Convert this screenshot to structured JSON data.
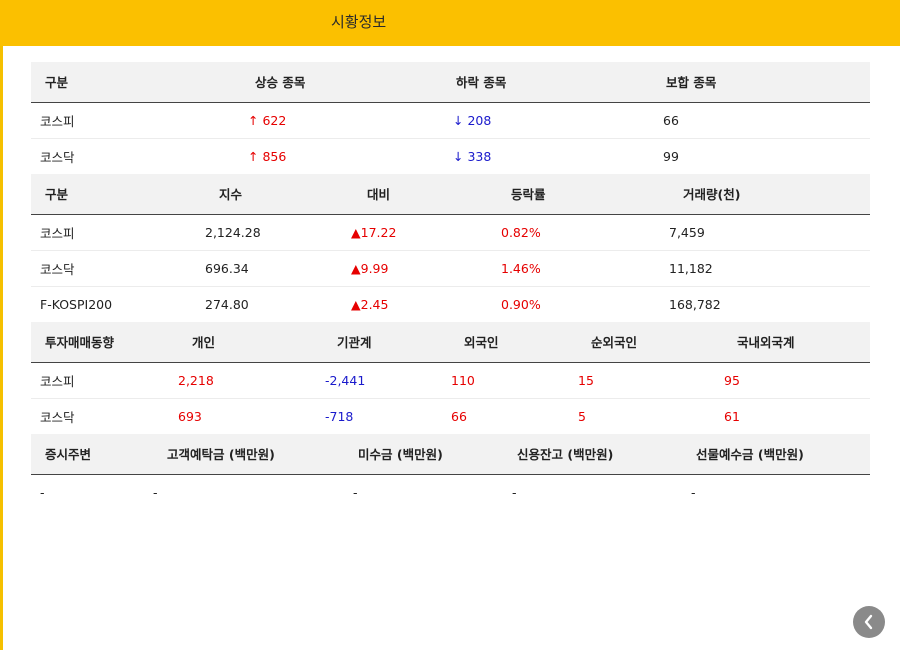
{
  "header": {
    "title": "시황정보"
  },
  "table1": {
    "headers": [
      "구분",
      "상승 종목",
      "하락 종목",
      "보합 종목"
    ],
    "rows": [
      {
        "name": "코스피",
        "rise": "↑ 622",
        "fall": "↓ 208",
        "flat": "66"
      },
      {
        "name": "코스닥",
        "rise": "↑ 856",
        "fall": "↓ 338",
        "flat": "99"
      }
    ]
  },
  "table2": {
    "headers": [
      "구분",
      "지수",
      "대비",
      "등락률",
      "거래량(천)"
    ],
    "rows": [
      {
        "name": "코스피",
        "index": "2,124.28",
        "change": "▲17.22",
        "rate": "0.82%",
        "volume": "7,459"
      },
      {
        "name": "코스닥",
        "index": "696.34",
        "change": "▲9.99",
        "rate": "1.46%",
        "volume": "11,182"
      },
      {
        "name": "F-KOSPI200",
        "index": "274.80",
        "change": "▲2.45",
        "rate": "0.90%",
        "volume": "168,782"
      }
    ]
  },
  "table3": {
    "headers": [
      "투자매매동향",
      "개인",
      "기관계",
      "외국인",
      "순외국인",
      "국내외국계"
    ],
    "rows": [
      {
        "name": "코스피",
        "individual": "2,218",
        "institution": "-2,441",
        "foreign": "110",
        "net_foreign": "15",
        "domestic_foreign": "95"
      },
      {
        "name": "코스닥",
        "individual": "693",
        "institution": "-718",
        "foreign": "66",
        "net_foreign": "5",
        "domestic_foreign": "61"
      }
    ]
  },
  "table4": {
    "headers": [
      "증시주변",
      "고객예탁금 (백만원)",
      "미수금 (백만원)",
      "신용잔고 (백만원)",
      "선물예수금 (백만원)"
    ],
    "rows": [
      {
        "c1": "-",
        "c2": "-",
        "c3": "-",
        "c4": "-",
        "c5": "-"
      }
    ]
  },
  "colors": {
    "header": "#fbc000",
    "up": "#e60000",
    "down": "#1a1acc"
  },
  "icons": {
    "back": "chevron-left-icon"
  }
}
